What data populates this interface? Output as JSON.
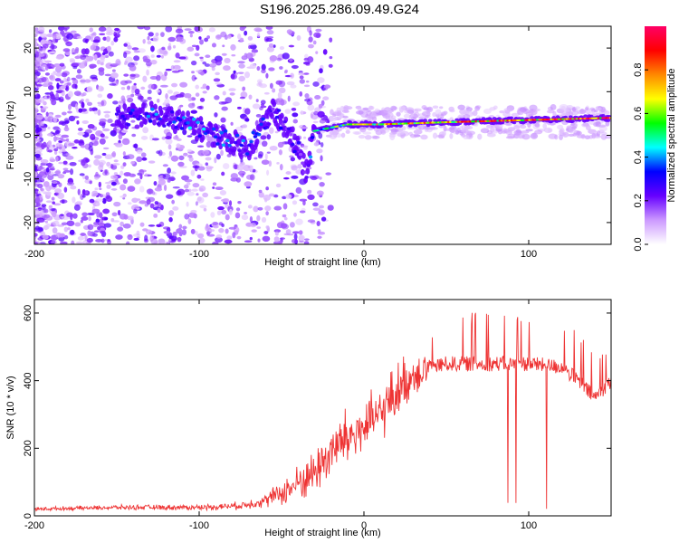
{
  "chart_data": [
    {
      "type": "heatmap",
      "title": "S196.2025.286.09.49.G24",
      "xlabel": "Height of straight line (km)",
      "ylabel": "Frequency (Hz)",
      "xlim": [
        -200,
        150
      ],
      "ylim": [
        -25,
        25
      ],
      "xticks": [
        -200,
        -100,
        0,
        100
      ],
      "yticks": [
        -20,
        -10,
        0,
        10,
        20
      ],
      "colorbar": {
        "label": "Normalized spectral amplitude",
        "range": [
          0,
          1
        ],
        "ticks": [
          "0.0",
          "0.2",
          "0.4",
          "0.6",
          "0.8"
        ],
        "colors": [
          "#ffffff",
          "#cc99ff",
          "#6600ff",
          "#0000ff",
          "#00ffff",
          "#00ff00",
          "#ffff00",
          "#ff8800",
          "#ff0000",
          "#ff0066"
        ]
      },
      "ridge": {
        "description_points": [
          {
            "x": -150,
            "y": 4,
            "amp": 0.25
          },
          {
            "x": -130,
            "y": 5,
            "amp": 0.35
          },
          {
            "x": -110,
            "y": 3,
            "amp": 0.4
          },
          {
            "x": -90,
            "y": 0,
            "amp": 0.35
          },
          {
            "x": -70,
            "y": -3,
            "amp": 0.35
          },
          {
            "x": -55,
            "y": 6,
            "amp": 0.3
          },
          {
            "x": -40,
            "y": -3,
            "amp": 0.25
          },
          {
            "x": -35,
            "y": -9,
            "amp": 0.3
          },
          {
            "x": -30,
            "y": 1,
            "amp": 0.45
          },
          {
            "x": -10,
            "y": 2.5,
            "amp": 0.6
          },
          {
            "x": 10,
            "y": 2.5,
            "amp": 0.75
          },
          {
            "x": 50,
            "y": 3,
            "amp": 0.8
          },
          {
            "x": 100,
            "y": 3.5,
            "amp": 0.85
          },
          {
            "x": 150,
            "y": 4,
            "amp": 0.9
          }
        ]
      }
    },
    {
      "type": "line",
      "title": "",
      "xlabel": "Height of straight line (km)",
      "ylabel": "SNR (10 * v/v)",
      "xlim": [
        -200,
        150
      ],
      "ylim": [
        0,
        640
      ],
      "xticks": [
        -200,
        -100,
        0,
        100
      ],
      "yticks": [
        0,
        200,
        400,
        600
      ],
      "color": "#ee3333",
      "envelope": {
        "x": [
          -200,
          -150,
          -100,
          -75,
          -60,
          -45,
          -30,
          -20,
          -10,
          0,
          10,
          20,
          30,
          40,
          50,
          60,
          80,
          100,
          120,
          130,
          140,
          150
        ],
        "mean": [
          20,
          25,
          25,
          30,
          45,
          80,
          130,
          190,
          230,
          260,
          300,
          370,
          420,
          440,
          450,
          450,
          450,
          450,
          440,
          400,
          350,
          400
        ],
        "spread": [
          10,
          12,
          15,
          20,
          35,
          80,
          120,
          150,
          160,
          150,
          140,
          150,
          120,
          100,
          120,
          140,
          150,
          150,
          140,
          140,
          120,
          80
        ]
      }
    }
  ]
}
